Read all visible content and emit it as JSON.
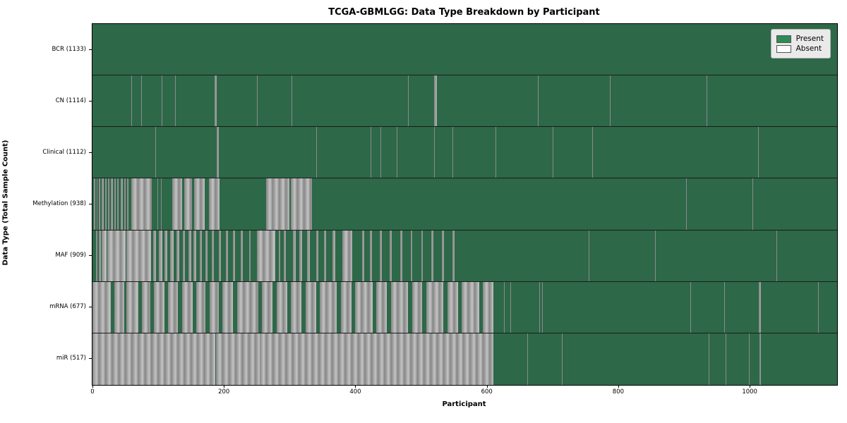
{
  "figure": {
    "title": "TCGA-GBMLGG: Data Type Breakdown by Participant",
    "xlabel": "Participant",
    "ylabel": "Data Type (Total Sample Count)"
  },
  "legend": {
    "present_label": "Present",
    "absent_label": "Absent",
    "present_color": "#2e8b57",
    "absent_color": "#ffffff"
  },
  "chart_data": {
    "type": "heatmap",
    "subtype": "presence-absence-matrix",
    "title": "TCGA-GBMLGG: Data Type Breakdown by Participant",
    "xlabel": "Participant",
    "ylabel": "Data Type (Total Sample Count)",
    "x_max": 1133,
    "x_ticks": [
      0,
      200,
      400,
      600,
      800,
      1000
    ],
    "grid": false,
    "legend_position": "upper right",
    "legend_entries": [
      {
        "label": "Present",
        "color": "#2e8b57"
      },
      {
        "label": "Absent",
        "color": "#ffffff"
      }
    ],
    "rows": [
      {
        "name": "BCR",
        "label": "BCR (1133)",
        "present_count": 1133,
        "absent_segments": []
      },
      {
        "name": "CN",
        "label": "CN (1114)",
        "present_count": 1114,
        "absent_segments": [
          [
            59,
            60
          ],
          [
            74,
            75
          ],
          [
            105,
            106
          ],
          [
            126,
            127
          ],
          [
            186,
            189
          ],
          [
            250,
            251
          ],
          [
            303,
            304
          ],
          [
            480,
            481
          ],
          [
            520,
            524
          ],
          [
            678,
            679
          ],
          [
            787,
            788
          ],
          [
            934,
            935
          ]
        ]
      },
      {
        "name": "Clinical",
        "label": "Clinical (1112)",
        "present_count": 1112,
        "absent_segments": [
          [
            96,
            97
          ],
          [
            166,
            167
          ],
          [
            189,
            192
          ],
          [
            340,
            341
          ],
          [
            423,
            424
          ],
          [
            438,
            439
          ],
          [
            463,
            464
          ],
          [
            520,
            521
          ],
          [
            548,
            549
          ],
          [
            613,
            614
          ],
          [
            700,
            701
          ],
          [
            760,
            761
          ],
          [
            1013,
            1014
          ]
        ]
      },
      {
        "name": "Methylation",
        "label": "Methylation (938)",
        "present_count": 938,
        "absent_segments": [
          [
            2,
            4
          ],
          [
            6,
            8
          ],
          [
            10,
            12
          ],
          [
            14,
            17
          ],
          [
            19,
            21
          ],
          [
            24,
            26
          ],
          [
            28,
            31
          ],
          [
            33,
            35
          ],
          [
            38,
            40
          ],
          [
            43,
            46
          ],
          [
            48,
            50
          ],
          [
            53,
            55
          ],
          [
            59,
            90
          ],
          [
            99,
            100
          ],
          [
            104,
            105
          ],
          [
            121,
            136
          ],
          [
            140,
            151
          ],
          [
            155,
            171
          ],
          [
            177,
            193
          ],
          [
            264,
            300
          ],
          [
            302,
            334
          ],
          [
            903,
            904
          ],
          [
            1004,
            1005
          ]
        ]
      },
      {
        "name": "MAF",
        "label": "MAF (909)",
        "present_count": 909,
        "absent_segments": [
          [
            5,
            8
          ],
          [
            10,
            13
          ],
          [
            14,
            21
          ],
          [
            23,
            50
          ],
          [
            52,
            89
          ],
          [
            92,
            97
          ],
          [
            101,
            106
          ],
          [
            110,
            114
          ],
          [
            118,
            123
          ],
          [
            128,
            132
          ],
          [
            137,
            141
          ],
          [
            146,
            150
          ],
          [
            154,
            158
          ],
          [
            163,
            166
          ],
          [
            172,
            175
          ],
          [
            182,
            185
          ],
          [
            192,
            195
          ],
          [
            203,
            206
          ],
          [
            214,
            217
          ],
          [
            226,
            229
          ],
          [
            238,
            241
          ],
          [
            250,
            278
          ],
          [
            283,
            286
          ],
          [
            291,
            294
          ],
          [
            305,
            309
          ],
          [
            315,
            319
          ],
          [
            327,
            331
          ],
          [
            340,
            344
          ],
          [
            352,
            356
          ],
          [
            365,
            369
          ],
          [
            380,
            395
          ],
          [
            410,
            413
          ],
          [
            422,
            425
          ],
          [
            437,
            440
          ],
          [
            452,
            455
          ],
          [
            468,
            471
          ],
          [
            484,
            487
          ],
          [
            500,
            503
          ],
          [
            516,
            519
          ],
          [
            532,
            535
          ],
          [
            548,
            551
          ],
          [
            755,
            756
          ],
          [
            856,
            857
          ],
          [
            1041,
            1042
          ]
        ]
      },
      {
        "name": "mRNA",
        "label": "mRNA (677)",
        "present_count": 677,
        "absent_segments": [
          [
            0,
            28
          ],
          [
            33,
            48
          ],
          [
            52,
            70
          ],
          [
            75,
            88
          ],
          [
            93,
            110
          ],
          [
            115,
            130
          ],
          [
            136,
            152
          ],
          [
            158,
            172
          ],
          [
            178,
            192
          ],
          [
            198,
            214
          ],
          [
            220,
            252
          ],
          [
            258,
            274
          ],
          [
            280,
            296
          ],
          [
            302,
            318
          ],
          [
            324,
            340
          ],
          [
            346,
            372
          ],
          [
            378,
            394
          ],
          [
            400,
            426
          ],
          [
            432,
            448
          ],
          [
            454,
            480
          ],
          [
            486,
            502
          ],
          [
            508,
            534
          ],
          [
            540,
            556
          ],
          [
            562,
            588
          ],
          [
            594,
            610
          ],
          [
            626,
            627
          ],
          [
            636,
            637
          ],
          [
            680,
            681
          ],
          [
            684,
            685
          ],
          [
            910,
            911
          ],
          [
            961,
            962
          ],
          [
            1014,
            1017
          ],
          [
            1104,
            1105
          ]
        ]
      },
      {
        "name": "miR",
        "label": "miR (517)",
        "present_count": 517,
        "absent_segments": [
          [
            0,
            187
          ],
          [
            188,
            254
          ],
          [
            255,
            610
          ],
          [
            662,
            663
          ],
          [
            714,
            715
          ],
          [
            938,
            939
          ],
          [
            963,
            964
          ],
          [
            999,
            1000
          ],
          [
            1015,
            1017
          ]
        ]
      }
    ]
  }
}
